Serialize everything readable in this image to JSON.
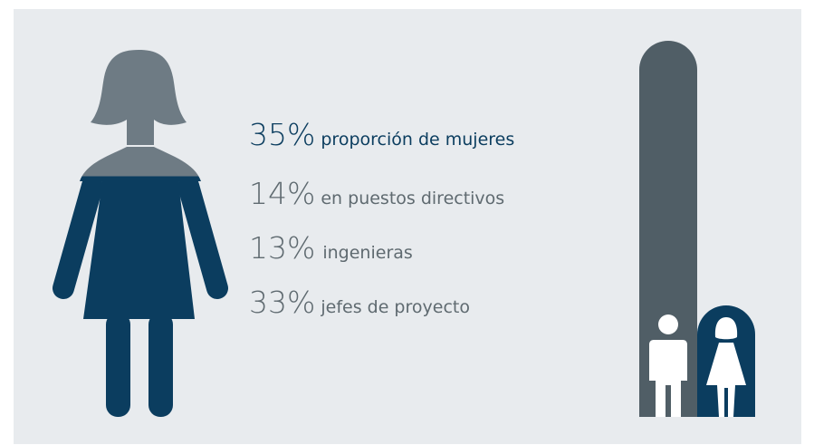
{
  "stats": [
    {
      "value": "35%",
      "label": "proporción de mujeres"
    },
    {
      "value": "14%",
      "label": "en puestos directivos"
    },
    {
      "value": "13%",
      "label": "ingenieras"
    },
    {
      "value": "33%",
      "label": "jefes de proyecto"
    }
  ]
}
